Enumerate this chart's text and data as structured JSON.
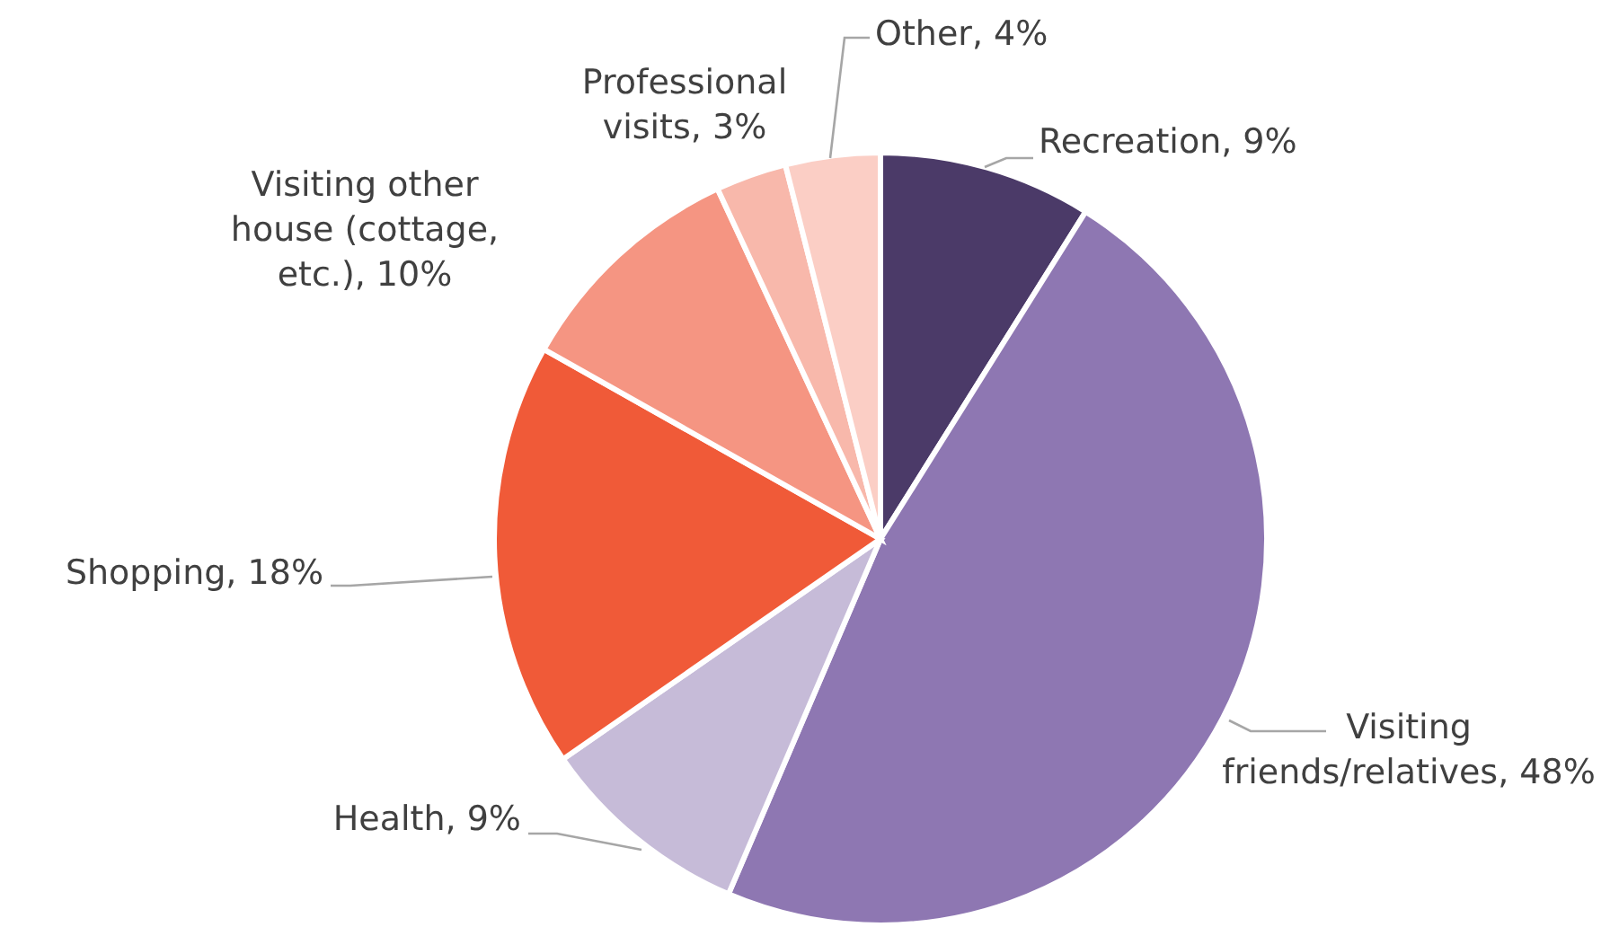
{
  "chart_data": {
    "type": "pie",
    "categories": [
      "Recreation",
      "Visiting friends/relatives",
      "Health",
      "Shopping",
      "Visiting other house (cottage, etc.)",
      "Professional visits",
      "Other"
    ],
    "values": [
      9,
      48,
      9,
      18,
      10,
      3,
      4
    ],
    "value_labels": [
      "9%",
      "48%",
      "9%",
      "18%",
      "10%",
      "3%",
      "4%"
    ],
    "colors": [
      "#4b3a68",
      "#8e77b2",
      "#c6bbd8",
      "#f05a38",
      "#f59582",
      "#f8b8ab",
      "#fbcec5"
    ]
  }
}
